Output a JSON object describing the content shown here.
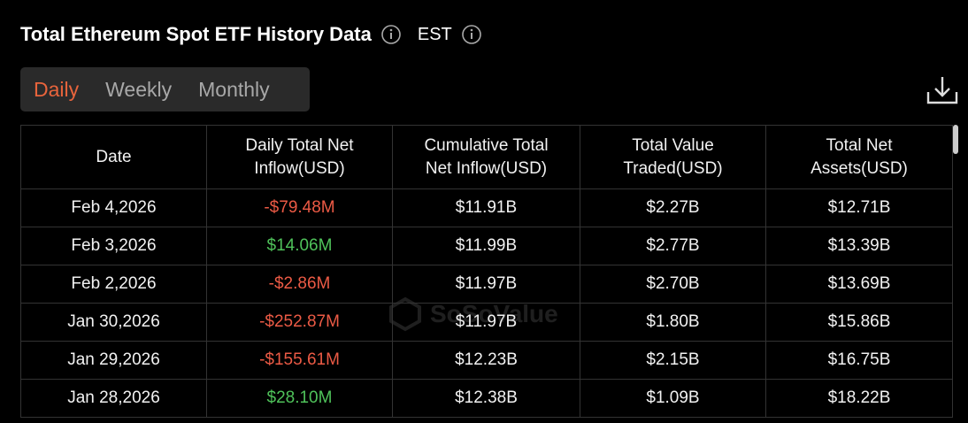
{
  "header": {
    "title": "Total Ethereum Spot ETF History Data",
    "timezone": "EST"
  },
  "tabs": [
    "Daily",
    "Weekly",
    "Monthly"
  ],
  "watermark": "SoSoValue",
  "table": {
    "columns": [
      "Date",
      "Daily Total Net Inflow(USD)",
      "Cumulative Total Net Inflow(USD)",
      "Total Value Traded(USD)",
      "Total Net Assets(USD)"
    ],
    "rows": [
      [
        "Feb 4,2026",
        "-$79.48M",
        "$11.91B",
        "$2.27B",
        "$12.71B"
      ],
      [
        "Feb 3,2026",
        "$14.06M",
        "$11.99B",
        "$2.77B",
        "$13.39B"
      ],
      [
        "Feb 2,2026",
        "-$2.86M",
        "$11.97B",
        "$2.70B",
        "$13.69B"
      ],
      [
        "Jan 30,2026",
        "-$252.87M",
        "$11.97B",
        "$1.80B",
        "$15.86B"
      ],
      [
        "Jan 29,2026",
        "-$155.61M",
        "$12.23B",
        "$2.15B",
        "$16.75B"
      ],
      [
        "Jan 28,2026",
        "$28.10M",
        "$12.38B",
        "$1.09B",
        "$18.22B"
      ]
    ]
  }
}
